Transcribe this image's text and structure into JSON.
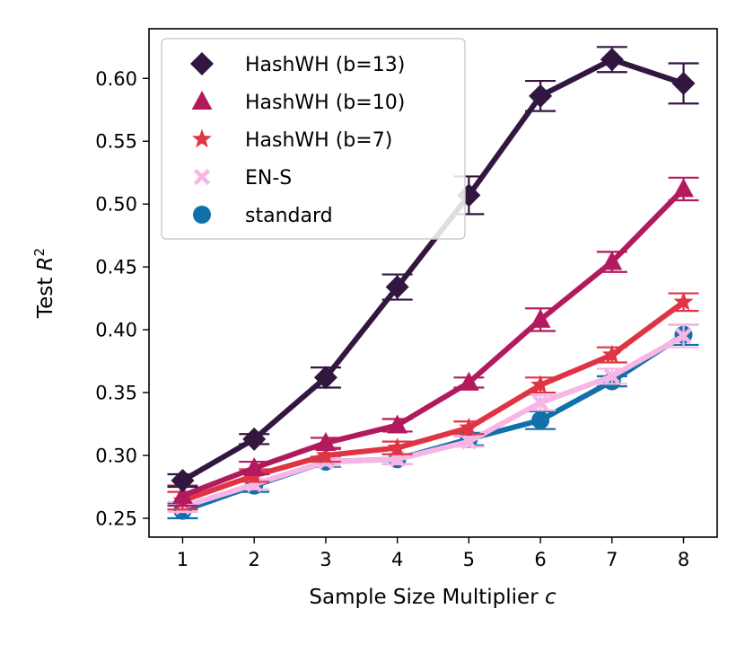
{
  "chart_data": {
    "type": "line",
    "title": "",
    "xlabel": "Sample Size Multiplier",
    "xlabel_var": "c",
    "ylabel": "Test",
    "ylabel_var": "R",
    "ylabel_sup": "2",
    "x": [
      1,
      2,
      3,
      4,
      5,
      6,
      7,
      8
    ],
    "xlim": [
      0.53,
      8.47
    ],
    "ylim": [
      0.235,
      0.6395
    ],
    "xticks": [
      "1",
      "2",
      "3",
      "4",
      "5",
      "6",
      "7",
      "8"
    ],
    "yticks": [
      "0.25",
      "0.30",
      "0.35",
      "0.40",
      "0.45",
      "0.50",
      "0.55",
      "0.60"
    ],
    "ytick_values": [
      0.25,
      0.3,
      0.35,
      0.4,
      0.45,
      0.5,
      0.55,
      0.6
    ],
    "legend_position": "top-left",
    "series": [
      {
        "name": "standard",
        "marker": "circle",
        "color": "#1170aa",
        "values": [
          0.256,
          0.276,
          0.295,
          0.297,
          0.313,
          0.328,
          0.359,
          0.396
        ],
        "errors": [
          0.006,
          0.005,
          0.004,
          0.004,
          0.005,
          0.007,
          0.004,
          0.008
        ]
      },
      {
        "name": "EN-S",
        "marker": "x",
        "color": "#f7b6e5",
        "values": [
          0.259,
          0.277,
          0.295,
          0.297,
          0.311,
          0.342,
          0.363,
          0.395
        ],
        "errors": [
          0.004,
          0.004,
          0.003,
          0.004,
          0.004,
          0.006,
          0.006,
          0.009
        ]
      },
      {
        "name": "HashWH (b=7)",
        "marker": "star",
        "color": "#e03445",
        "values": [
          0.264,
          0.284,
          0.3,
          0.306,
          0.322,
          0.356,
          0.38,
          0.422
        ],
        "errors": [
          0.007,
          0.005,
          0.005,
          0.005,
          0.005,
          0.006,
          0.006,
          0.007
        ]
      },
      {
        "name": "HashWH (b=10)",
        "marker": "triangle",
        "color": "#b31a5e",
        "values": [
          0.268,
          0.29,
          0.31,
          0.324,
          0.358,
          0.408,
          0.454,
          0.512
        ],
        "errors": [
          0.008,
          0.005,
          0.004,
          0.005,
          0.004,
          0.009,
          0.008,
          0.009
        ]
      },
      {
        "name": "HashWH (b=13)",
        "marker": "diamond",
        "color": "#32163f",
        "values": [
          0.28,
          0.313,
          0.362,
          0.434,
          0.507,
          0.586,
          0.615,
          0.596
        ],
        "errors": [
          0.005,
          0.004,
          0.008,
          0.01,
          0.015,
          0.012,
          0.01,
          0.016
        ]
      }
    ],
    "legend_order": [
      "HashWH (b=13)",
      "HashWH (b=10)",
      "HashWH (b=7)",
      "EN-S",
      "standard"
    ]
  }
}
